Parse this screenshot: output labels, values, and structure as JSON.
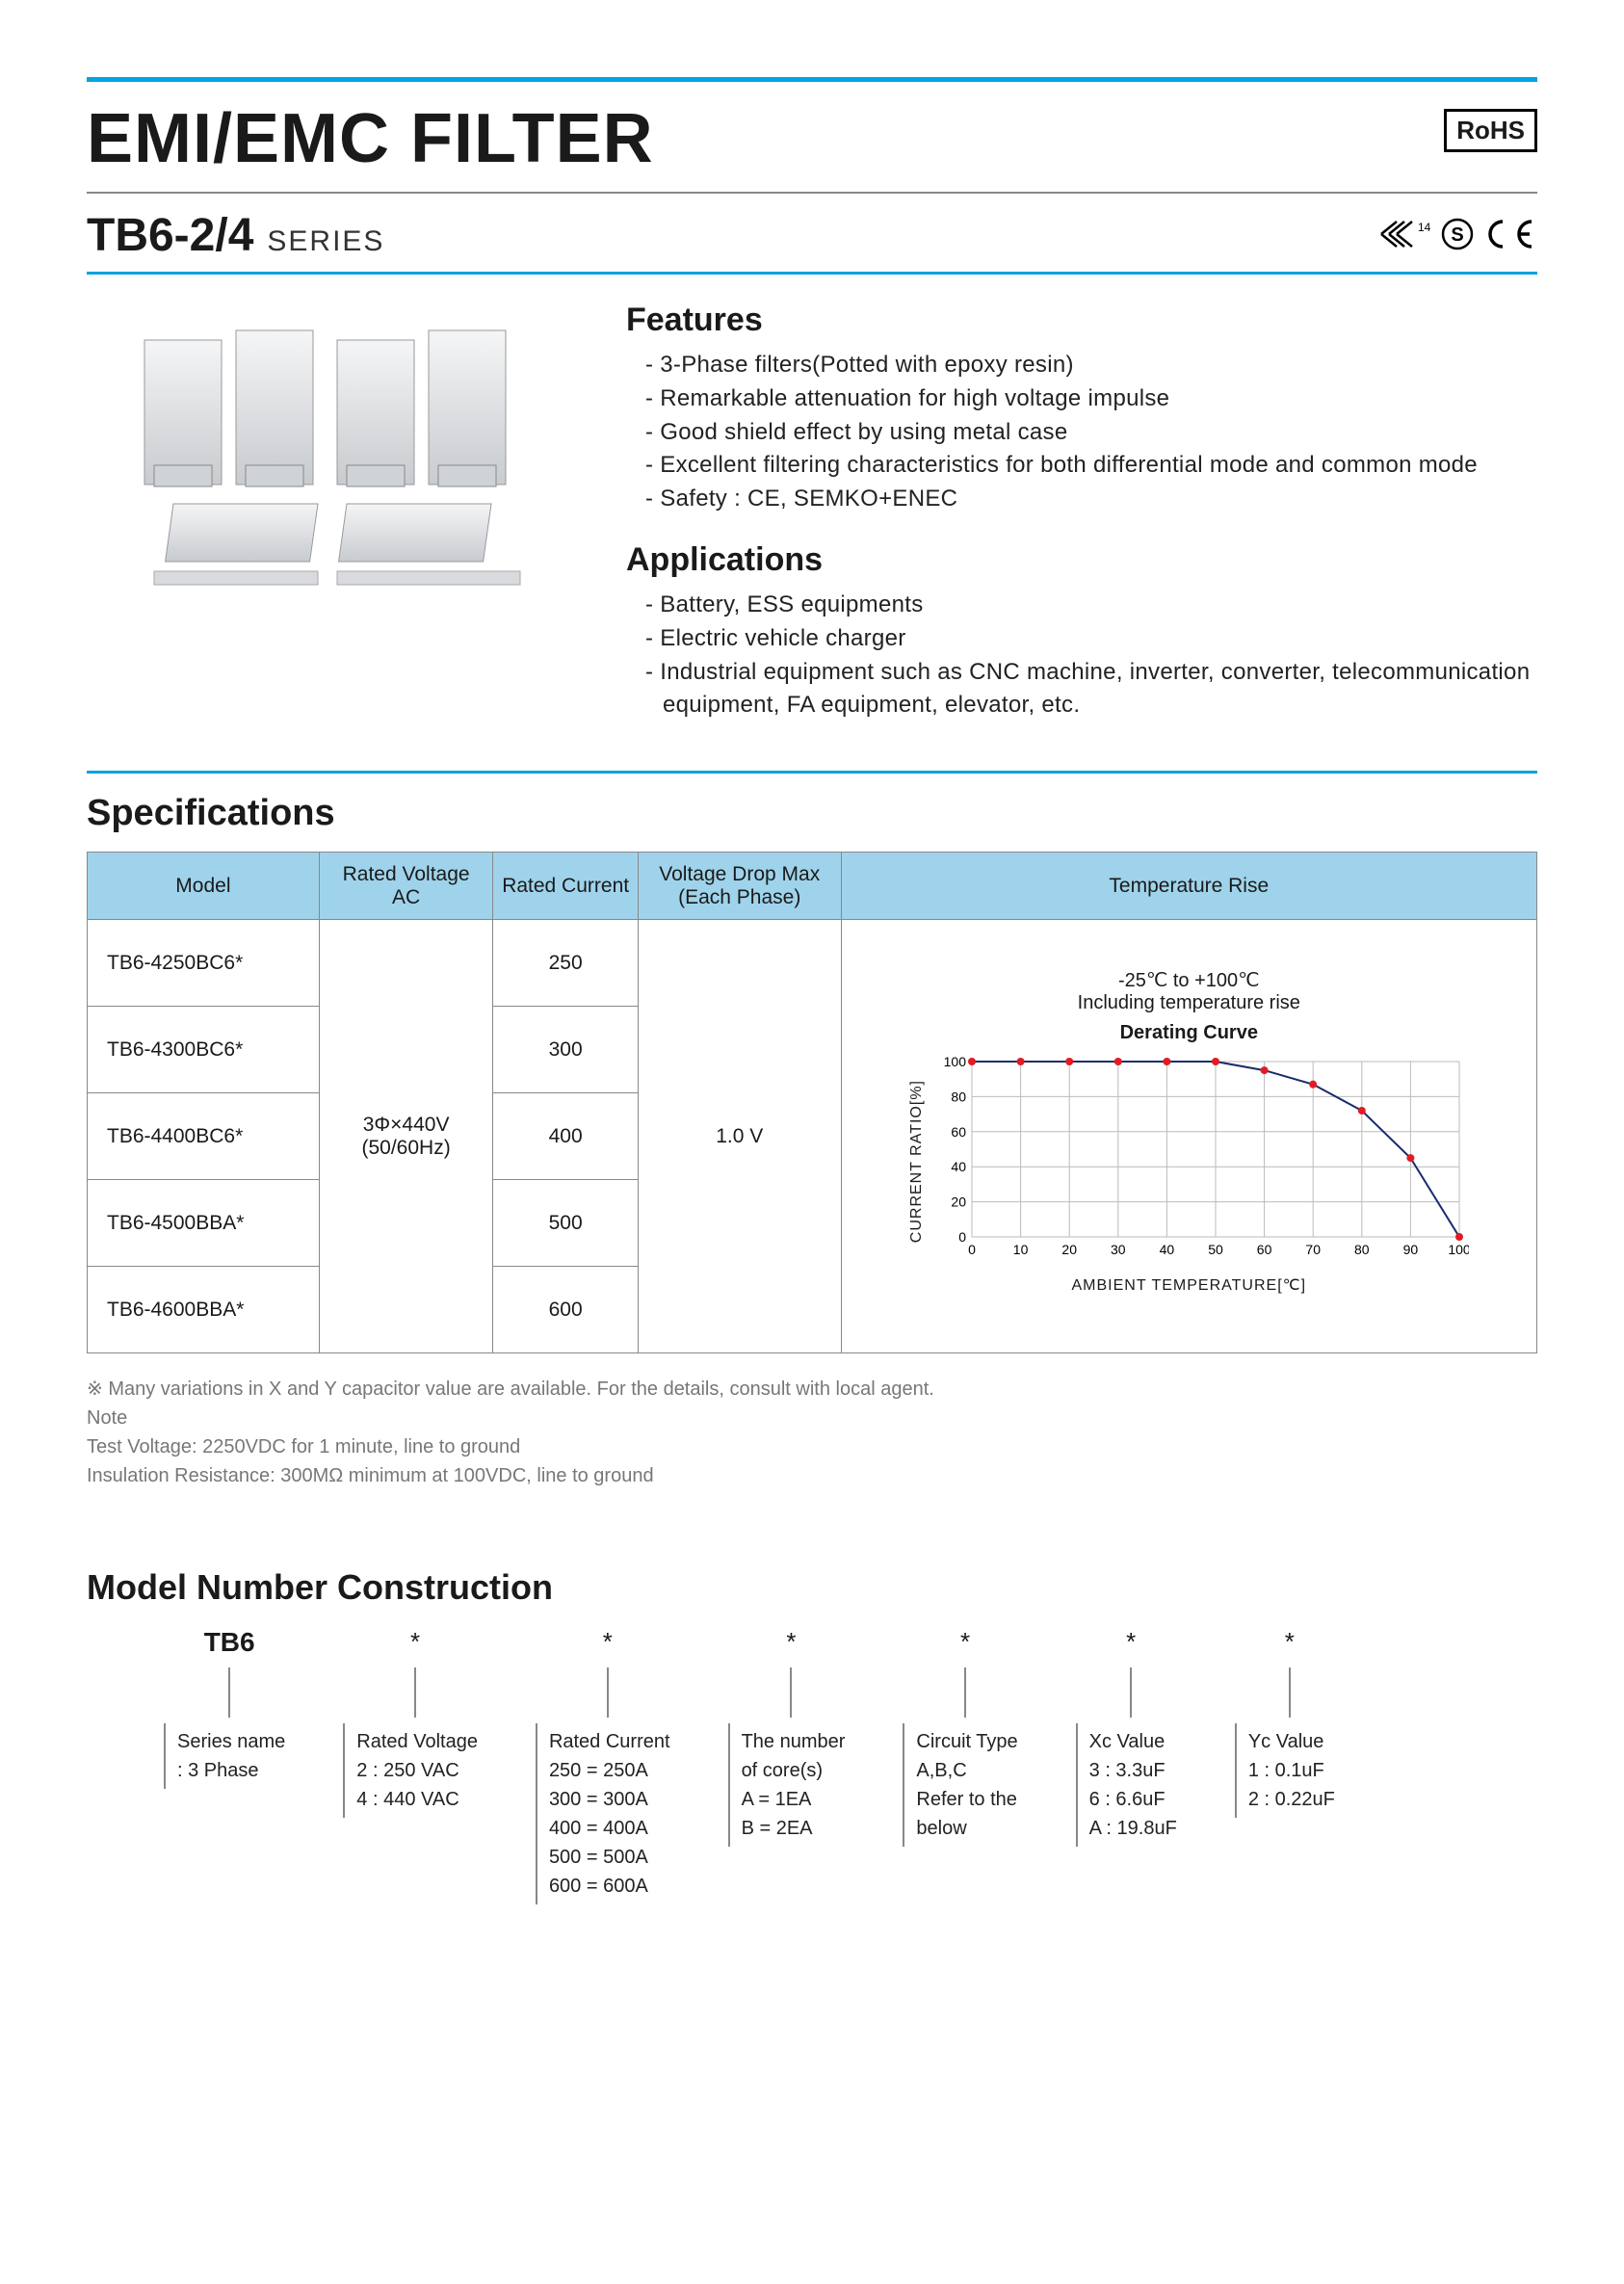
{
  "header": {
    "title": "EMI/EMC FILTER",
    "rohs": "RoHS",
    "series_code": "TB6-2/4",
    "series_word": "SERIES"
  },
  "features": {
    "heading": "Features",
    "items": [
      "3-Phase filters(Potted with epoxy resin)",
      "Remarkable attenuation for high voltage impulse",
      "Good shield effect by using metal case",
      "Excellent filtering characteristics for both differential mode and common mode",
      "Safety : CE, SEMKO+ENEC"
    ]
  },
  "applications": {
    "heading": "Applications",
    "items": [
      "Battery, ESS equipments",
      "Electric vehicle charger",
      "Industrial equipment such as CNC machine, inverter, converter, telecommunication equipment, FA equipment, elevator, etc."
    ]
  },
  "specs": {
    "heading": "Specifications",
    "columns": [
      "Model",
      "Rated Voltage AC",
      "Rated Current",
      "Voltage  Drop Max (Each Phase)",
      "Temperature Rise"
    ],
    "rated_voltage": "3Φ×440V\n(50/60Hz)",
    "voltage_drop": "1.0 V",
    "temp_text": "-25℃ to +100℃\nIncluding temperature rise",
    "rows": [
      {
        "model": "TB6-4250BC6*",
        "current": "250"
      },
      {
        "model": "TB6-4300BC6*",
        "current": "300"
      },
      {
        "model": "TB6-4400BC6*",
        "current": "400"
      },
      {
        "model": "TB6-4500BBA*",
        "current": "500"
      },
      {
        "model": "TB6-4600BBA*",
        "current": "600"
      }
    ]
  },
  "chart": {
    "title": "Derating Curve",
    "y_label": "CURRENT RATIO[%]",
    "x_label": "AMBIENT TEMPERATURE[℃]",
    "xlim": [
      0,
      100
    ],
    "ylim": [
      0,
      100
    ],
    "xtick_step": 10,
    "ytick_step": 20,
    "grid_color": "#bbbbbb",
    "background_color": "#ffffff",
    "line_color": "#1a2b6d",
    "line_width": 2,
    "marker_color": "#e31b23",
    "marker_radius": 4,
    "points": [
      {
        "x": 0,
        "y": 100
      },
      {
        "x": 10,
        "y": 100
      },
      {
        "x": 20,
        "y": 100
      },
      {
        "x": 30,
        "y": 100
      },
      {
        "x": 40,
        "y": 100
      },
      {
        "x": 50,
        "y": 100
      },
      {
        "x": 60,
        "y": 95
      },
      {
        "x": 70,
        "y": 87
      },
      {
        "x": 80,
        "y": 72
      },
      {
        "x": 90,
        "y": 45
      },
      {
        "x": 100,
        "y": 0
      }
    ],
    "tick_fontsize": 14
  },
  "notes": {
    "variation": "※ Many variations in X and Y capacitor value are available. For the details, consult with local agent.",
    "note_label": "Note",
    "test_voltage": "Test Voltage: 2250VDC for 1 minute, line to ground",
    "insulation": "Insulation Resistance: 300MΩ minimum at 100VDC, line to ground"
  },
  "construction": {
    "heading": "Model Number Construction",
    "columns": [
      {
        "top": "TB6",
        "top_strong": true,
        "desc": "Series name\n: 3 Phase"
      },
      {
        "top": "*",
        "desc": "Rated Voltage\n2 : 250 VAC\n4 : 440 VAC"
      },
      {
        "top": "*",
        "desc": "Rated Current\n250 = 250A\n300 = 300A\n400 = 400A\n500 = 500A\n600 = 600A"
      },
      {
        "top": "*",
        "desc": "The number\nof core(s)\nA = 1EA\nB = 2EA"
      },
      {
        "top": "*",
        "desc": "Circuit Type\nA,B,C\nRefer to the\nbelow"
      },
      {
        "top": "*",
        "desc": "Xc Value\n3 : 3.3uF\n6 : 6.6uF\nA : 19.8uF"
      },
      {
        "top": "*",
        "desc": "Yc Value\n1 : 0.1uF\n2 : 0.22uF"
      }
    ]
  },
  "colors": {
    "accent": "#00a3e0",
    "header_bg": "#9fd3eb",
    "border": "#888888",
    "text_muted": "#777777"
  }
}
